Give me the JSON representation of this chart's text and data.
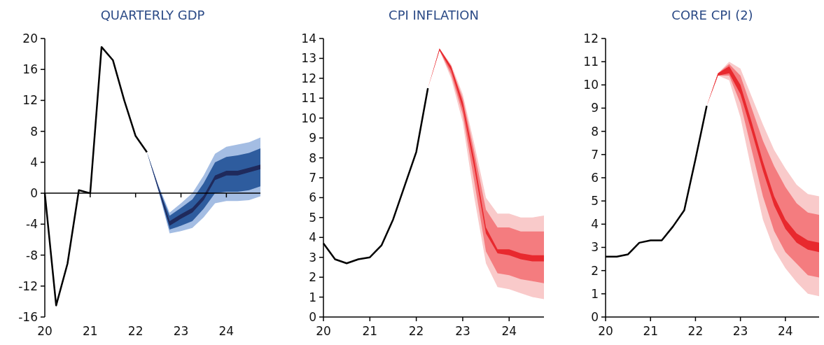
{
  "chart_data": [
    {
      "type": "line",
      "title": "QUARTERLY GDP",
      "xlim": [
        20,
        24.75
      ],
      "xticks": [
        20,
        21,
        22,
        23,
        24
      ],
      "ylim": [
        -16,
        20
      ],
      "yticks": [
        -16,
        -12,
        -8,
        -4,
        0,
        4,
        8,
        12,
        16,
        20
      ],
      "marker": "none",
      "line_style": "solid",
      "series": [
        {
          "color": "#a4bde3",
          "x": [
            22.25,
            22.5,
            22.75,
            23,
            23.25,
            23.5,
            23.75,
            24,
            24.25,
            24.5,
            24.75
          ],
          "values": [
            null,
            null,
            null,
            null,
            null,
            null,
            null,
            null,
            null,
            null,
            null
          ],
          "lower": [
            5.3,
            0.3,
            -5.2,
            -4.9,
            -4.5,
            -3.1,
            -1.3,
            -1.0,
            -1.0,
            -0.9,
            -0.4
          ],
          "upper": [
            5.3,
            1.1,
            -2.5,
            -1.3,
            0,
            2.3,
            5.1,
            6.0,
            6.3,
            6.6,
            7.2
          ]
        },
        {
          "color": "#2e5c9e",
          "x": [
            22.25,
            22.5,
            22.75,
            23,
            23.25,
            23.5,
            23.75,
            24,
            24.25,
            24.5,
            24.75
          ],
          "values": [
            null,
            null,
            null,
            null,
            null,
            null,
            null,
            null,
            null,
            null,
            null
          ],
          "lower": [
            5.3,
            0.5,
            -4.7,
            -4.2,
            -3.6,
            -2.0,
            0.0,
            0.2,
            0.2,
            0.4,
            0.9
          ],
          "upper": [
            5.3,
            0.9,
            -2.9,
            -1.9,
            -0.8,
            1.3,
            4.0,
            4.7,
            4.9,
            5.2,
            5.8
          ]
        },
        {
          "color": "#1f2a5c",
          "x": [
            22.25,
            22.5,
            22.75,
            23,
            23.25,
            23.5,
            23.75,
            24,
            24.25,
            24.5,
            24.75
          ],
          "values": [
            null,
            null,
            null,
            null,
            null,
            null,
            null,
            null,
            null,
            null,
            null
          ],
          "lower": [
            5.3,
            0.5,
            -4.2,
            -3.3,
            -2.5,
            -0.9,
            1.7,
            2.3,
            2.3,
            2.7,
            3.1
          ],
          "upper": [
            5.3,
            0.9,
            -3.6,
            -2.7,
            -1.9,
            -0.3,
            2.3,
            2.9,
            2.9,
            3.3,
            3.7
          ]
        },
        {
          "color": "#000000",
          "x": [
            20,
            20.25,
            20.5,
            20.75,
            21,
            21.25,
            21.5,
            21.75,
            22,
            22.25
          ],
          "values": [
            0,
            -14.5,
            -9.1,
            0.4,
            0,
            18.9,
            17.2,
            12.0,
            7.4,
            5.3
          ]
        }
      ]
    },
    {
      "type": "line",
      "title": "CPI INFLATION",
      "xlim": [
        20,
        24.75
      ],
      "xticks": [
        20,
        21,
        22,
        23,
        24
      ],
      "ylim": [
        0,
        14
      ],
      "yticks": [
        0,
        1,
        2,
        3,
        4,
        5,
        6,
        7,
        8,
        9,
        10,
        11,
        12,
        13,
        14
      ],
      "marker": "none",
      "line_style": "solid",
      "series": [
        {
          "color": "#f9caca",
          "x": [
            22.25,
            22.5,
            22.75,
            23,
            23.25,
            23.5,
            23.75,
            24,
            24.25,
            24.5,
            24.75
          ],
          "values": [
            null,
            null,
            null,
            null,
            null,
            null,
            null,
            null,
            null,
            null,
            null
          ],
          "lower": [
            11.5,
            13.4,
            12.0,
            9.8,
            6.0,
            2.7,
            1.5,
            1.4,
            1.2,
            1.0,
            0.9
          ],
          "upper": [
            11.5,
            13.5,
            12.7,
            11.2,
            8.7,
            6.0,
            5.2,
            5.2,
            5.0,
            5.0,
            5.1
          ]
        },
        {
          "color": "#f47c7f",
          "x": [
            22.25,
            22.5,
            22.75,
            23,
            23.25,
            23.5,
            23.75,
            24,
            24.25,
            24.5,
            24.75
          ],
          "values": [
            null,
            null,
            null,
            null,
            null,
            null,
            null,
            null,
            null,
            null,
            null
          ],
          "lower": [
            11.5,
            13.4,
            12.2,
            10.2,
            6.8,
            3.3,
            2.2,
            2.1,
            1.9,
            1.8,
            1.7
          ],
          "upper": [
            11.5,
            13.5,
            12.6,
            11.0,
            8.3,
            5.4,
            4.5,
            4.5,
            4.3,
            4.3,
            4.3
          ]
        },
        {
          "color": "#e8292e",
          "x": [
            22.25,
            22.5,
            22.75,
            23,
            23.25,
            23.5,
            23.75,
            24,
            24.25,
            24.5,
            24.75
          ],
          "values": [
            null,
            null,
            null,
            null,
            null,
            null,
            null,
            null,
            null,
            null,
            null
          ],
          "lower": [
            11.5,
            13.4,
            12.4,
            10.5,
            7.5,
            4.2,
            3.2,
            3.1,
            2.9,
            2.8,
            2.8
          ],
          "upper": [
            11.5,
            13.5,
            12.6,
            10.8,
            7.9,
            4.5,
            3.4,
            3.4,
            3.2,
            3.1,
            3.1
          ]
        },
        {
          "color": "#000000",
          "x": [
            20,
            20.25,
            20.5,
            20.75,
            21,
            21.25,
            21.5,
            21.75,
            22,
            22.25
          ],
          "values": [
            3.7,
            2.9,
            2.7,
            2.9,
            3.0,
            3.6,
            4.9,
            6.6,
            8.3,
            11.5
          ]
        }
      ]
    },
    {
      "type": "line",
      "title": "CORE CPI (2)",
      "xlim": [
        20,
        24.75
      ],
      "xticks": [
        20,
        21,
        22,
        23,
        24
      ],
      "ylim": [
        0,
        12
      ],
      "yticks": [
        0,
        1,
        2,
        3,
        4,
        5,
        6,
        7,
        8,
        9,
        10,
        11,
        12
      ],
      "marker": "none",
      "line_style": "solid",
      "series": [
        {
          "color": "#f9caca",
          "x": [
            22.25,
            22.5,
            22.75,
            23,
            23.25,
            23.5,
            23.75,
            24,
            24.25,
            24.5,
            24.75
          ],
          "values": [
            null,
            null,
            null,
            null,
            null,
            null,
            null,
            null,
            null,
            null,
            null
          ],
          "lower": [
            9.1,
            10.4,
            10.2,
            8.6,
            6.3,
            4.2,
            2.9,
            2.1,
            1.5,
            1.0,
            0.9
          ],
          "upper": [
            9.1,
            10.5,
            11.0,
            10.7,
            9.5,
            8.3,
            7.2,
            6.4,
            5.7,
            5.3,
            5.2
          ]
        },
        {
          "color": "#f47c7f",
          "x": [
            22.25,
            22.5,
            22.75,
            23,
            23.25,
            23.5,
            23.75,
            24,
            24.25,
            24.5,
            24.75
          ],
          "values": [
            null,
            null,
            null,
            null,
            null,
            null,
            null,
            null,
            null,
            null,
            null
          ],
          "lower": [
            9.1,
            10.4,
            10.4,
            9.2,
            7.2,
            5.2,
            3.7,
            2.8,
            2.3,
            1.8,
            1.7
          ],
          "upper": [
            9.1,
            10.5,
            10.9,
            10.4,
            9.0,
            7.6,
            6.5,
            5.6,
            4.9,
            4.5,
            4.4
          ]
        },
        {
          "color": "#e8292e",
          "x": [
            22.25,
            22.5,
            22.75,
            23,
            23.25,
            23.5,
            23.75,
            24,
            24.25,
            24.5,
            24.75
          ],
          "values": [
            null,
            null,
            null,
            null,
            null,
            null,
            null,
            null,
            null,
            null,
            null
          ],
          "lower": [
            9.1,
            10.4,
            10.5,
            9.6,
            8.0,
            6.3,
            4.8,
            3.8,
            3.2,
            2.9,
            2.8
          ],
          "upper": [
            9.1,
            10.5,
            10.8,
            10.0,
            8.4,
            6.7,
            5.2,
            4.2,
            3.6,
            3.3,
            3.2
          ]
        },
        {
          "color": "#000000",
          "x": [
            20,
            20.25,
            20.5,
            20.75,
            21,
            21.25,
            21.5,
            21.75,
            22,
            22.25
          ],
          "values": [
            2.6,
            2.6,
            2.7,
            3.2,
            3.3,
            3.3,
            3.9,
            4.6,
            6.8,
            9.1
          ]
        }
      ]
    }
  ]
}
